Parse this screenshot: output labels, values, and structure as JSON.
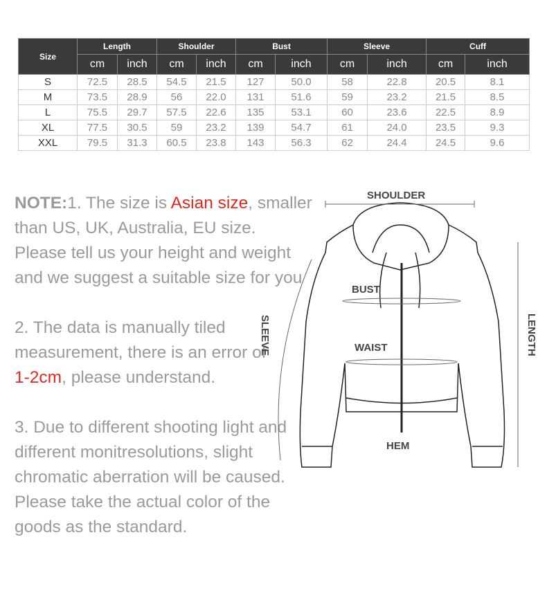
{
  "table": {
    "size_header": "Size",
    "groups": [
      "Length",
      "Shoulder",
      "Bust",
      "Sleeve",
      "Cuff"
    ],
    "units": [
      "cm",
      "inch"
    ],
    "rows": [
      {
        "size": "S",
        "values": [
          "72.5",
          "28.5",
          "54.5",
          "21.5",
          "127",
          "50.0",
          "58",
          "22.8",
          "20.5",
          "8.1"
        ]
      },
      {
        "size": "M",
        "values": [
          "73.5",
          "28.9",
          "56",
          "22.0",
          "131",
          "51.6",
          "59",
          "23.2",
          "21.5",
          "8.5"
        ]
      },
      {
        "size": "L",
        "values": [
          "75.5",
          "29.7",
          "57.5",
          "22.6",
          "135",
          "53.1",
          "60",
          "23.6",
          "22.5",
          "8.9"
        ]
      },
      {
        "size": "XL",
        "values": [
          "77.5",
          "30.5",
          "59",
          "23.2",
          "139",
          "54.7",
          "61",
          "24.0",
          "23.5",
          "9.3"
        ]
      },
      {
        "size": "XXL",
        "values": [
          "79.5",
          "31.3",
          "60.5",
          "23.8",
          "143",
          "56.3",
          "62",
          "24.4",
          "24.5",
          "9.6"
        ]
      }
    ]
  },
  "notes": {
    "label": "NOTE:",
    "n1_a": "1. The size is ",
    "n1_red": "Asian size",
    "n1_b": ", smaller than US, UK, Australia, EU size. Please tell us your height and weight and we suggest a suitable size for you",
    "n2_a": "2. The data is manually tiled measurement, there is an error of ",
    "n2_red": "1-2cm",
    "n2_b": ", please understand.",
    "n3": "3. Due to different shooting light and different monitresolutions, slight chromatic aberration will be caused. Please take the actual color of the goods as the standard."
  },
  "diagram": {
    "shoulder": "SHOULDER",
    "bust": "BUST",
    "waist": "WAIST",
    "hem": "HEM",
    "sleeve": "SLEEVE",
    "length": "LENGTH"
  },
  "colors": {
    "header_bg": "#3a3a3a",
    "accent_red": "#e0281e",
    "text_gray": "#9a9a9a"
  }
}
